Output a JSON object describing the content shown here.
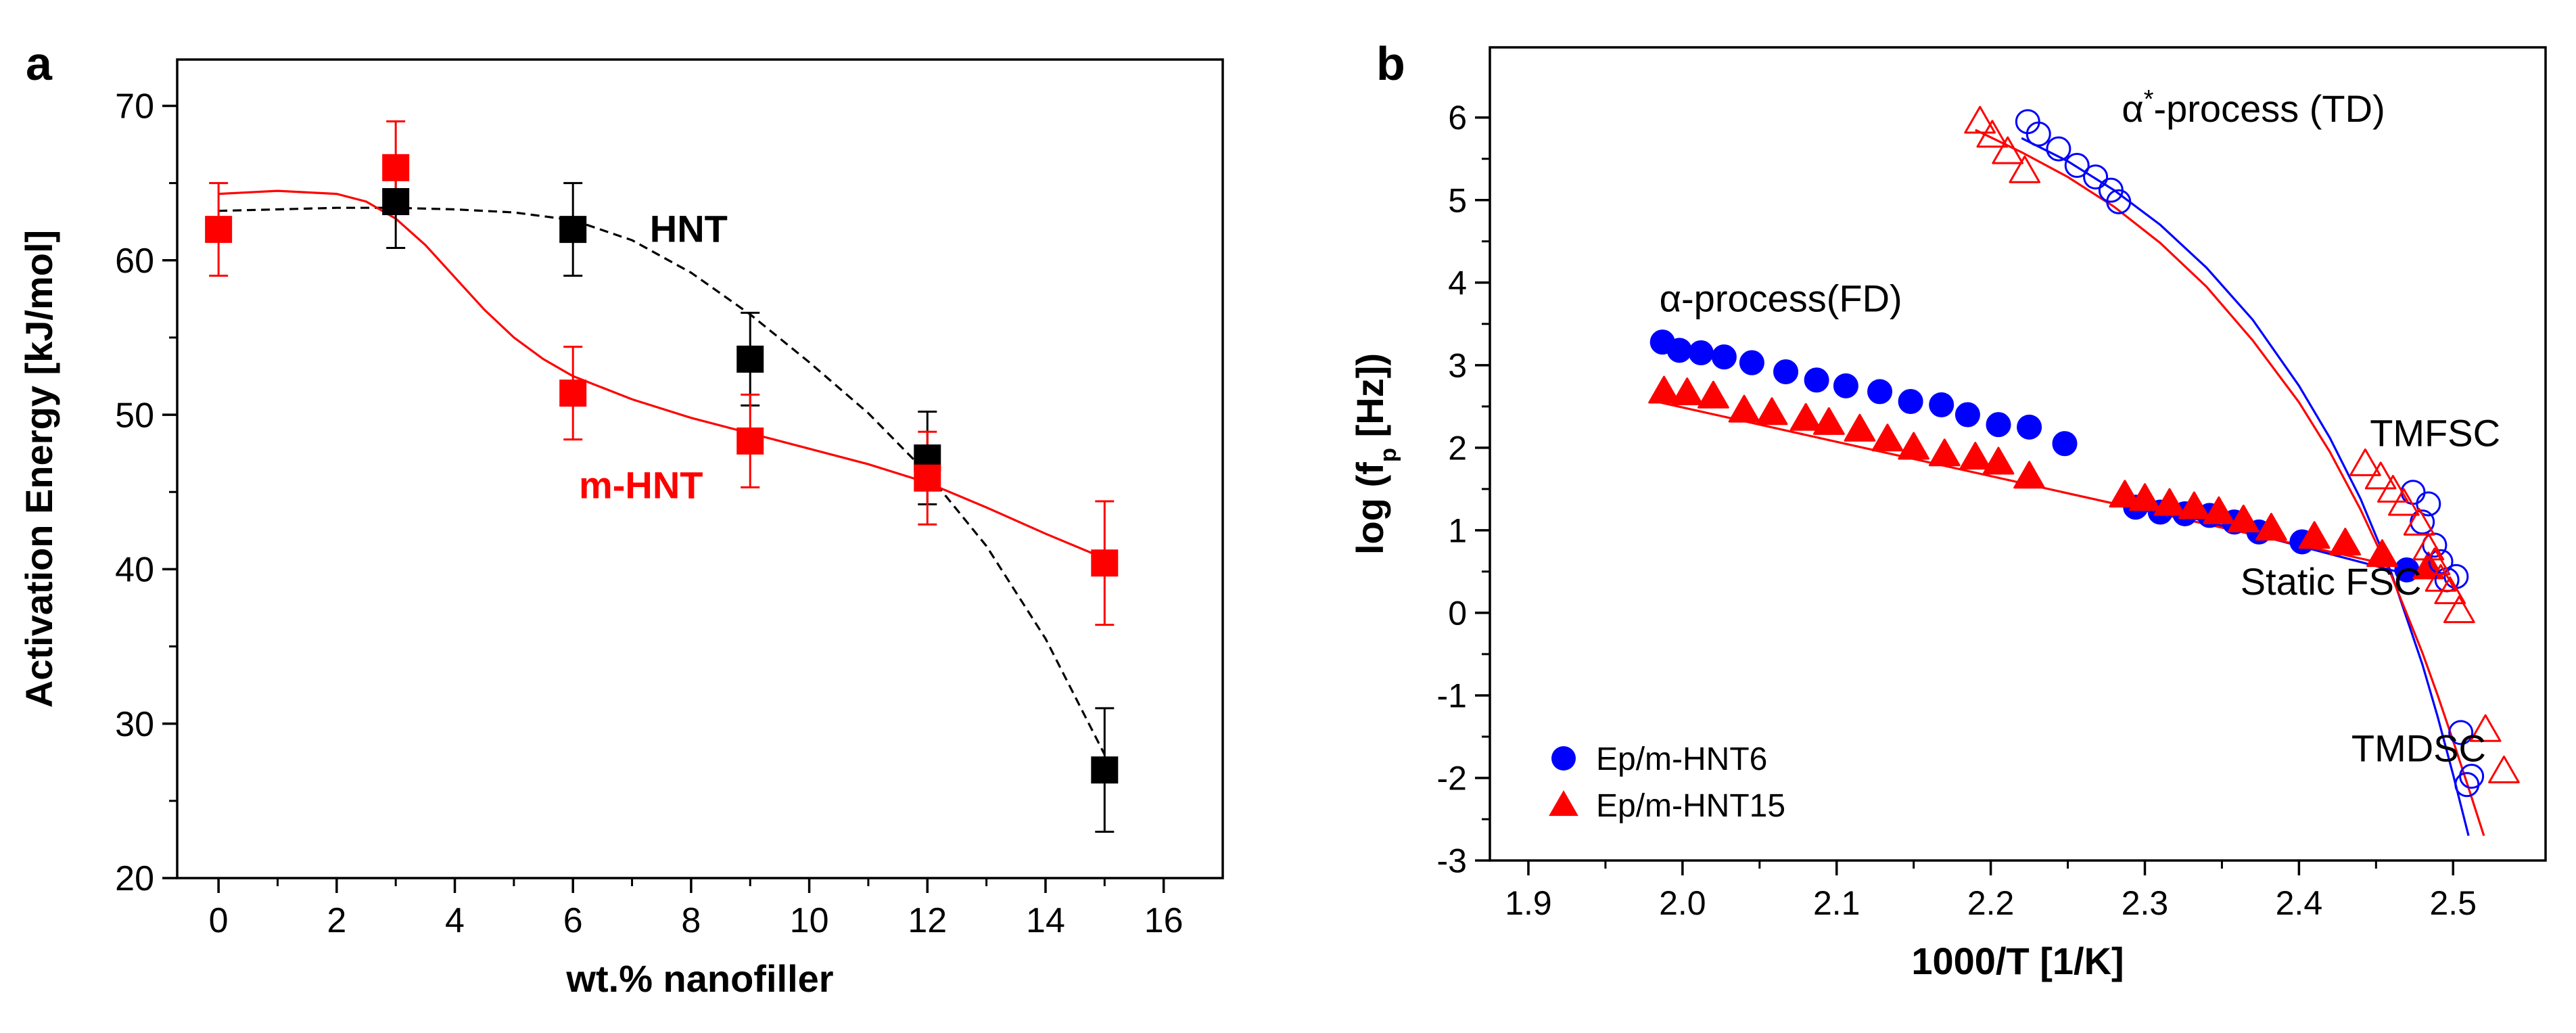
{
  "chart_data": [
    {
      "panel": "a",
      "type": "scatter",
      "title": "",
      "xlabel": "wt.% nanofiller",
      "ylabel": "Activation Energy [kJ/mol]",
      "xlim": [
        -0.7,
        17.0
      ],
      "ylim": [
        20,
        73
      ],
      "xticks": [
        0,
        2,
        4,
        6,
        8,
        10,
        12,
        14,
        16
      ],
      "yticks": [
        20,
        30,
        40,
        50,
        60,
        70
      ],
      "colors": {
        "HNT": "#000000",
        "mHNT": "#ff0000"
      },
      "series": [
        {
          "name": "HNT",
          "color": "#000000",
          "x": [
            3,
            6,
            9,
            12,
            15
          ],
          "y": [
            63.8,
            62.0,
            53.6,
            47.2,
            27.0
          ],
          "err": [
            3.0,
            3.0,
            3.0,
            3.0,
            4.0
          ]
        },
        {
          "name": "m-HNT",
          "color": "#ff0000",
          "x": [
            0,
            3,
            6,
            9,
            12,
            15
          ],
          "y": [
            62.0,
            66.0,
            51.4,
            48.3,
            45.9,
            40.4
          ],
          "err": [
            3.0,
            3.0,
            3.0,
            3.0,
            3.0,
            4.0
          ]
        }
      ],
      "fits": [
        {
          "name": "HNT fit",
          "style": "dashed",
          "color": "#000000",
          "x": [
            0,
            1,
            2,
            3,
            4,
            5,
            6,
            7,
            8,
            9,
            10,
            11,
            12,
            13,
            14,
            15
          ],
          "y": [
            63.2,
            63.3,
            63.4,
            63.4,
            63.3,
            63.1,
            62.6,
            61.3,
            59.2,
            56.5,
            53.4,
            50.1,
            46.2,
            41.5,
            35.5,
            28.0
          ]
        },
        {
          "name": "m-HNT fit",
          "style": "solid",
          "color": "#ff0000",
          "x": [
            0,
            1,
            2,
            2.5,
            3,
            3.5,
            4,
            4.5,
            5,
            5.5,
            6,
            7,
            8,
            9,
            10,
            11,
            12,
            13,
            14,
            15
          ],
          "y": [
            64.3,
            64.5,
            64.3,
            63.8,
            62.7,
            61.0,
            58.9,
            56.8,
            55.0,
            53.6,
            52.5,
            51.0,
            49.8,
            48.8,
            47.8,
            46.8,
            45.6,
            44.0,
            42.3,
            40.7
          ]
        }
      ],
      "annotations": [
        {
          "text": "HNT",
          "x": 7.3,
          "y": 61.2,
          "color": "#000000"
        },
        {
          "text": "m-HNT",
          "x": 6.1,
          "y": 44.6,
          "color": "#ff0000"
        }
      ]
    },
    {
      "panel": "b",
      "type": "scatter",
      "title": "",
      "xlabel": "1000/T [1/K]",
      "ylabel": "log (f",
      "ylabel_sub": "p",
      "ylabel_tail": " [Hz])",
      "xlim": [
        1.875,
        2.56
      ],
      "ylim": [
        -3.0,
        6.85
      ],
      "xticks": [
        1.9,
        2.0,
        2.1,
        2.2,
        2.3,
        2.4,
        2.5
      ],
      "xtick_labels": [
        "1.9",
        "2.0",
        "2.1",
        "2.2",
        "2.3",
        "2.4",
        "2.5"
      ],
      "yticks": [
        -3,
        -2,
        -1,
        0,
        1,
        2,
        3,
        4,
        5,
        6
      ],
      "colors": {
        "HNT6": "#0000ff",
        "HNT15": "#ff0000"
      },
      "legend": {
        "placement": "bottom-left",
        "entries": [
          {
            "label": "Ep/m-HNT6",
            "marker": "circle",
            "color": "#0000ff"
          },
          {
            "label": "Ep/m-HNT15",
            "marker": "triangle",
            "color": "#ff0000"
          }
        ]
      },
      "series": [
        {
          "name": "Ep/m-HNT6 alpha FD",
          "marker": "circle",
          "filled": true,
          "color": "#0000ff",
          "x": [
            1.987,
            1.998,
            2.012,
            2.027,
            2.045,
            2.067,
            2.087,
            2.106,
            2.128,
            2.148,
            2.168,
            2.185,
            2.205,
            2.225,
            2.248
          ],
          "y": [
            3.28,
            3.18,
            3.15,
            3.1,
            3.03,
            2.92,
            2.82,
            2.75,
            2.68,
            2.56,
            2.52,
            2.4,
            2.28,
            2.25,
            2.05
          ]
        },
        {
          "name": "Ep/m-HNT15 alpha FD",
          "marker": "triangle",
          "filled": true,
          "color": "#ff0000",
          "x": [
            1.988,
            2.003,
            2.02,
            2.04,
            2.058,
            2.08,
            2.095,
            2.115,
            2.133,
            2.15,
            2.17,
            2.19,
            2.205,
            2.225
          ],
          "y": [
            2.68,
            2.66,
            2.62,
            2.45,
            2.42,
            2.35,
            2.3,
            2.22,
            2.1,
            2.0,
            1.92,
            1.88,
            1.82,
            1.65
          ]
        },
        {
          "name": "Ep/m-HNT6 static FSC",
          "marker": "circle",
          "filled": true,
          "color": "#0000ff",
          "x": [
            2.294,
            2.31,
            2.326,
            2.342,
            2.358,
            2.374,
            2.402,
            2.47
          ],
          "y": [
            1.28,
            1.22,
            1.2,
            1.18,
            1.1,
            0.98,
            0.86,
            0.52
          ]
        },
        {
          "name": "Ep/m-HNT15 static FSC",
          "marker": "triangle",
          "filled": true,
          "color": "#ff0000",
          "x": [
            2.287,
            2.3,
            2.316,
            2.332,
            2.348,
            2.364,
            2.382,
            2.41,
            2.43,
            2.454,
            2.484
          ],
          "y": [
            1.42,
            1.38,
            1.32,
            1.28,
            1.22,
            1.12,
            1.02,
            0.92,
            0.84,
            0.7,
            0.55
          ]
        },
        {
          "name": "Ep/m-HNT6 alpha* TD",
          "marker": "circle",
          "filled": false,
          "color": "#0000ff",
          "x": [
            2.224,
            2.231,
            2.244,
            2.256,
            2.268,
            2.278,
            2.283
          ],
          "y": [
            5.95,
            5.8,
            5.62,
            5.42,
            5.28,
            5.12,
            4.98
          ]
        },
        {
          "name": "Ep/m-HNT15 alpha* TD",
          "marker": "triangle",
          "filled": false,
          "color": "#ff0000",
          "x": [
            2.193,
            2.201,
            2.211,
            2.222
          ],
          "y": [
            5.95,
            5.78,
            5.58,
            5.35
          ]
        },
        {
          "name": "Ep/m-HNT6 TMFSC",
          "marker": "circle",
          "filled": false,
          "color": "#0000ff",
          "x": [
            2.474,
            2.484,
            2.48,
            2.488,
            2.492,
            2.496,
            2.502
          ],
          "y": [
            1.46,
            1.32,
            1.1,
            0.82,
            0.62,
            0.4,
            0.44
          ]
        },
        {
          "name": "Ep/m-HNT15 TMFSC",
          "marker": "triangle",
          "filled": false,
          "color": "#ff0000",
          "x": [
            2.443,
            2.453,
            2.461,
            2.468,
            2.478,
            2.484,
            2.488,
            2.492,
            2.498,
            2.504
          ],
          "y": [
            1.8,
            1.64,
            1.48,
            1.32,
            1.08,
            0.78,
            0.6,
            0.4,
            0.25,
            0.02
          ]
        },
        {
          "name": "Ep/m-HNT6 TMDSC",
          "marker": "circle",
          "filled": false,
          "color": "#0000ff",
          "x": [
            2.505,
            2.512,
            2.509
          ],
          "y": [
            -1.45,
            -1.98,
            -2.08
          ]
        },
        {
          "name": "Ep/m-HNT15 TMDSC",
          "marker": "triangle",
          "filled": false,
          "color": "#ff0000",
          "x": [
            2.521,
            2.533
          ],
          "y": [
            -1.42,
            -1.92
          ]
        }
      ],
      "fits": [
        {
          "name": "HNT6 VFT fit",
          "color": "#0000ff",
          "style": "solid",
          "x": [
            2.22,
            2.25,
            2.28,
            2.31,
            2.34,
            2.37,
            2.4,
            2.42,
            2.44,
            2.46,
            2.48,
            2.49,
            2.5,
            2.51,
            2.52,
            2.53
          ],
          "y": [
            5.75,
            5.47,
            5.12,
            4.7,
            4.18,
            3.55,
            2.75,
            2.12,
            1.38,
            0.48,
            -0.62,
            -1.26,
            -1.96,
            -2.7,
            -3.4,
            -4.0
          ]
        },
        {
          "name": "HNT15 VFT fit",
          "color": "#ff0000",
          "style": "solid",
          "x": [
            2.19,
            2.22,
            2.25,
            2.28,
            2.31,
            2.34,
            2.37,
            2.4,
            2.42,
            2.44,
            2.46,
            2.48,
            2.49,
            2.5,
            2.51,
            2.52,
            2.535
          ],
          "y": [
            5.85,
            5.58,
            5.28,
            4.92,
            4.48,
            3.95,
            3.3,
            2.55,
            1.95,
            1.25,
            0.45,
            -0.48,
            -1.0,
            -1.55,
            -2.12,
            -2.7,
            -3.55
          ]
        },
        {
          "name": "HNT6 Arrhenius fit",
          "color": "#0000ff",
          "style": "solid",
          "x": [
            2.29,
            2.48
          ],
          "y": [
            1.35,
            0.42
          ]
        },
        {
          "name": "HNT15 Arrhenius fit",
          "color": "#ff0000",
          "style": "solid",
          "x": [
            1.985,
            2.49
          ],
          "y": [
            2.55,
            0.45
          ]
        }
      ],
      "annotations": [
        {
          "text": "α-process(FD)",
          "x": 1.985,
          "y": 3.65
        },
        {
          "text": "α",
          "sup": "*",
          "tail": "-process (TD)",
          "x": 2.285,
          "y": 5.95
        },
        {
          "text": "TMFSC",
          "x": 2.446,
          "y": 2.02
        },
        {
          "text": "Static FSC",
          "x": 2.362,
          "y": 0.22
        },
        {
          "text": "TMDSC",
          "x": 2.434,
          "y": -1.8
        }
      ]
    }
  ],
  "labels": {
    "panel_a": "a",
    "panel_b": "b"
  }
}
